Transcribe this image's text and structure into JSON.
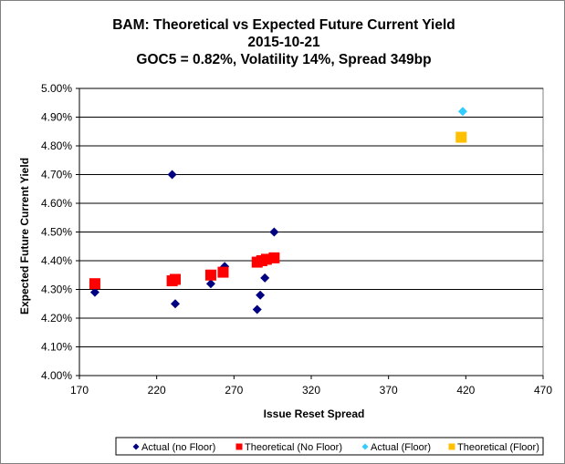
{
  "chart_data": {
    "type": "scatter",
    "title": [
      "BAM: Theoretical vs Expected Future Current Yield",
      "2015-10-21",
      "GOC5 = 0.82%, Volatility 14%, Spread 349bp"
    ],
    "xlabel": "Issue Reset Spread",
    "ylabel": "Expected Future Current Yield",
    "xlim": [
      170,
      470
    ],
    "ylim": [
      4.0,
      5.0
    ],
    "x_ticks": [
      170,
      220,
      270,
      320,
      370,
      420,
      470
    ],
    "x_tick_labels": [
      "170",
      "220",
      "270",
      "320",
      "370",
      "420",
      "470"
    ],
    "y_ticks": [
      4.0,
      4.1,
      4.2,
      4.3,
      4.4,
      4.5,
      4.6,
      4.7,
      4.8,
      4.9,
      5.0
    ],
    "y_tick_labels": [
      "4.00%",
      "4.10%",
      "4.20%",
      "4.30%",
      "4.40%",
      "4.50%",
      "4.60%",
      "4.70%",
      "4.80%",
      "4.90%",
      "5.00%"
    ],
    "grid": "horizontal",
    "legend_position": "bottom",
    "series": [
      {
        "name": "Actual (no Floor)",
        "marker": "diamond",
        "color": "#000080",
        "points": [
          [
            180,
            4.29
          ],
          [
            230,
            4.7
          ],
          [
            232,
            4.25
          ],
          [
            255,
            4.32
          ],
          [
            264,
            4.38
          ],
          [
            285,
            4.23
          ],
          [
            287,
            4.28
          ],
          [
            290,
            4.34
          ],
          [
            296,
            4.5
          ]
        ]
      },
      {
        "name": "Theoretical (No Floor)",
        "marker": "square",
        "color": "#ff0000",
        "points": [
          [
            180,
            4.32
          ],
          [
            230,
            4.33
          ],
          [
            232,
            4.335
          ],
          [
            255,
            4.35
          ],
          [
            263,
            4.36
          ],
          [
            285,
            4.395
          ],
          [
            288,
            4.4
          ],
          [
            291,
            4.405
          ],
          [
            296,
            4.41
          ]
        ]
      },
      {
        "name": "Actual (Floor)",
        "marker": "diamond",
        "color": "#33ccff",
        "points": [
          [
            418,
            4.92
          ]
        ]
      },
      {
        "name": "Theoretical (Floor)",
        "marker": "square",
        "color": "#ffc000",
        "points": [
          [
            417,
            4.83
          ]
        ]
      }
    ]
  }
}
